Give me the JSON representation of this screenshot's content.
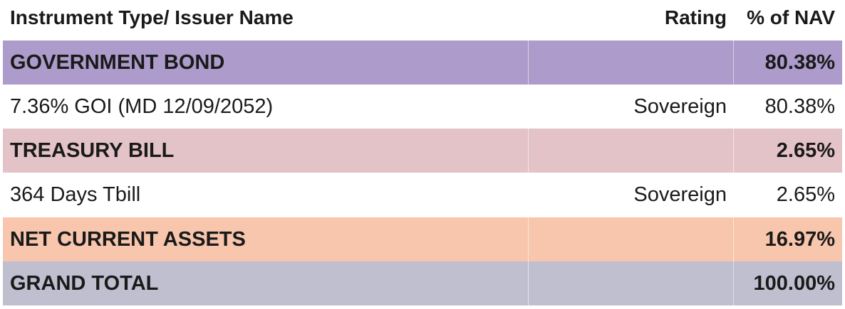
{
  "header": {
    "name": "Instrument Type/ Issuer Name",
    "rating": "Rating",
    "nav": "% of NAV"
  },
  "rows": [
    {
      "name": "GOVERNMENT BOND",
      "rating": "",
      "nav": "80.38%",
      "color": "#ac9bcb"
    },
    {
      "name": "7.36% GOI (MD 12/09/2052)",
      "rating": "Sovereign",
      "nav": "80.38%",
      "color": "#ffffff"
    },
    {
      "name": "TREASURY BILL",
      "rating": "",
      "nav": "2.65%",
      "color": "#e3c3c7"
    },
    {
      "name": "364 Days Tbill",
      "rating": "Sovereign",
      "nav": "2.65%",
      "color": "#ffffff"
    },
    {
      "name": "NET CURRENT ASSETS",
      "rating": "",
      "nav": "16.97%",
      "color": "#f8c6ad"
    },
    {
      "name": "GRAND TOTAL",
      "rating": "",
      "nav": "100.00%",
      "color": "#c0bfcf"
    }
  ]
}
